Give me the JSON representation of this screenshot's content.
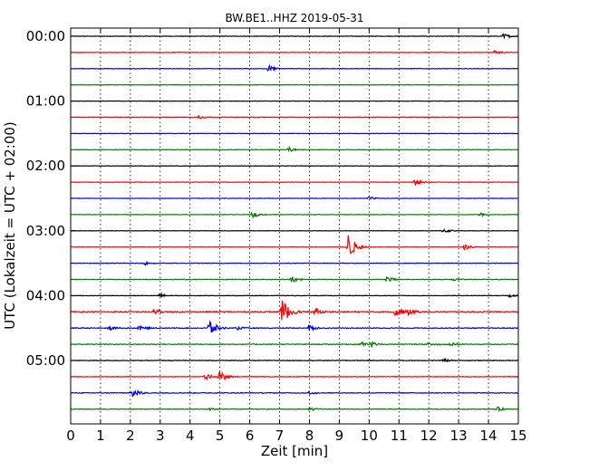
{
  "chart_data": {
    "type": "line",
    "title": "BW.BE1..HHZ 2019-05-31",
    "xlabel": "Zeit  [min]",
    "ylabel": "UTC (Lokalzeit = UTC + 02:00)",
    "xlim": [
      0,
      15
    ],
    "x_ticks": [
      "0",
      "1",
      "2",
      "3",
      "4",
      "5",
      "6",
      "7",
      "8",
      "9",
      "10",
      "11",
      "12",
      "13",
      "14",
      "15"
    ],
    "y_ticks": [
      "00:00",
      "01:00",
      "02:00",
      "03:00",
      "04:00",
      "05:00"
    ],
    "grid": {
      "vertical_dotted": true
    },
    "trace_colors": [
      "#000000",
      "#ff0000",
      "#0000ff",
      "#008000"
    ],
    "traces": [
      {
        "start": "00:00",
        "color": "#000000",
        "noise": 0.25,
        "events": [
          {
            "t": 14.5,
            "amp": 0.6
          }
        ]
      },
      {
        "start": "00:15",
        "color": "#ff0000",
        "noise": 0.25,
        "events": [
          {
            "t": 14.2,
            "amp": 0.5
          }
        ]
      },
      {
        "start": "00:30",
        "color": "#0000ff",
        "noise": 0.25,
        "events": [
          {
            "t": 6.6,
            "amp": 0.9
          }
        ]
      },
      {
        "start": "00:45",
        "color": "#008000",
        "noise": 0.2,
        "events": []
      },
      {
        "start": "01:00",
        "color": "#000000",
        "noise": 0.2,
        "events": []
      },
      {
        "start": "01:15",
        "color": "#ff0000",
        "noise": 0.3,
        "events": [
          {
            "t": 4.3,
            "amp": 0.5
          }
        ]
      },
      {
        "start": "01:30",
        "color": "#0000ff",
        "noise": 0.2,
        "events": []
      },
      {
        "start": "01:45",
        "color": "#008000",
        "noise": 0.25,
        "events": [
          {
            "t": 7.3,
            "amp": 0.6
          }
        ]
      },
      {
        "start": "02:00",
        "color": "#000000",
        "noise": 0.2,
        "events": []
      },
      {
        "start": "02:15",
        "color": "#ff0000",
        "noise": 0.2,
        "events": [
          {
            "t": 11.5,
            "amp": 0.9
          }
        ]
      },
      {
        "start": "02:30",
        "color": "#0000ff",
        "noise": 0.2,
        "events": [
          {
            "t": 10.0,
            "amp": 0.4
          }
        ]
      },
      {
        "start": "02:45",
        "color": "#008000",
        "noise": 0.2,
        "events": [
          {
            "t": 6.1,
            "amp": 0.7
          },
          {
            "t": 13.7,
            "amp": 0.4
          }
        ]
      },
      {
        "start": "03:00",
        "color": "#000000",
        "noise": 0.15,
        "events": [
          {
            "t": 12.5,
            "amp": 0.6
          }
        ]
      },
      {
        "start": "03:15",
        "color": "#ff0000",
        "noise": 0.2,
        "events": [
          {
            "t": 9.3,
            "amp": 3.0
          },
          {
            "t": 13.2,
            "amp": 0.6
          }
        ]
      },
      {
        "start": "03:30",
        "color": "#0000ff",
        "noise": 0.3,
        "events": [
          {
            "t": 2.5,
            "amp": 0.4
          }
        ]
      },
      {
        "start": "03:45",
        "color": "#008000",
        "noise": 0.3,
        "events": [
          {
            "t": 7.4,
            "amp": 0.8
          },
          {
            "t": 10.6,
            "amp": 0.7
          },
          {
            "t": 12.8,
            "amp": 0.4
          }
        ]
      },
      {
        "start": "04:00",
        "color": "#000000",
        "noise": 0.25,
        "events": [
          {
            "t": 3.0,
            "amp": 0.5
          },
          {
            "t": 14.7,
            "amp": 0.4
          }
        ]
      },
      {
        "start": "04:15",
        "color": "#ff0000",
        "noise": 0.6,
        "events": [
          {
            "t": 2.8,
            "amp": 1.0
          },
          {
            "t": 7.1,
            "amp": 3.2
          },
          {
            "t": 8.2,
            "amp": 0.8
          },
          {
            "t": 10.9,
            "amp": 1.6
          },
          {
            "t": 11.3,
            "amp": 1.0
          }
        ]
      },
      {
        "start": "04:30",
        "color": "#0000ff",
        "noise": 0.4,
        "events": [
          {
            "t": 1.3,
            "amp": 0.5
          },
          {
            "t": 2.3,
            "amp": 0.6
          },
          {
            "t": 4.65,
            "amp": 2.0
          },
          {
            "t": 8.0,
            "amp": 0.8
          },
          {
            "t": 5.6,
            "amp": 0.4
          }
        ]
      },
      {
        "start": "04:45",
        "color": "#008000",
        "noise": 0.4,
        "events": [
          {
            "t": 9.7,
            "amp": 0.8
          },
          {
            "t": 10.1,
            "amp": 0.6
          },
          {
            "t": 12.0,
            "amp": 0.5
          },
          {
            "t": 12.7,
            "amp": 0.5
          }
        ]
      },
      {
        "start": "05:00",
        "color": "#000000",
        "noise": 0.35,
        "events": [
          {
            "t": 12.5,
            "amp": 0.4
          }
        ]
      },
      {
        "start": "05:15",
        "color": "#ff0000",
        "noise": 0.3,
        "events": [
          {
            "t": 4.5,
            "amp": 0.8
          },
          {
            "t": 5.0,
            "amp": 1.4
          }
        ]
      },
      {
        "start": "05:30",
        "color": "#0000ff",
        "noise": 0.4,
        "events": [
          {
            "t": 2.1,
            "amp": 1.1
          },
          {
            "t": 8.0,
            "amp": 0.4
          }
        ]
      },
      {
        "start": "05:45",
        "color": "#008000",
        "noise": 0.3,
        "events": [
          {
            "t": 4.6,
            "amp": 0.4
          },
          {
            "t": 8.0,
            "amp": 0.5
          },
          {
            "t": 14.3,
            "amp": 0.5
          }
        ]
      }
    ]
  }
}
